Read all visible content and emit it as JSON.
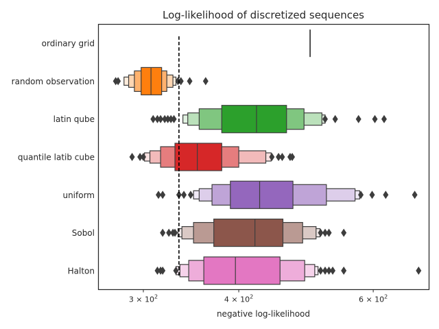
{
  "chart_data": {
    "type": "boxen",
    "title": "Log-likelihood of discretized sequences",
    "xlabel": "negative log-likelihood",
    "ylabel": "",
    "xscale": "log",
    "xlim": [
      262,
      710
    ],
    "xticks": [
      {
        "value": 300,
        "base": "3 × 10",
        "exp": "2"
      },
      {
        "value": 400,
        "base": "4 × 10",
        "exp": "2"
      },
      {
        "value": 600,
        "base": "6 × 10",
        "exp": "2"
      }
    ],
    "reference_line": {
      "x": 334,
      "style": "dashed"
    },
    "grid": false,
    "categories": [
      "ordinary grid",
      "random observation",
      "latin qube",
      "quantile latib cube",
      "uniform",
      "Sobol",
      "Halton"
    ],
    "series": [
      {
        "category": "ordinary grid",
        "color": "#1f77b4",
        "point_value": 496,
        "levels": [],
        "outliers": []
      },
      {
        "category": "random observation",
        "color": "#ff7f0e",
        "median": 307,
        "levels": [
          [
            298,
            317
          ],
          [
            292,
            322
          ],
          [
            287,
            328
          ],
          [
            283,
            331
          ]
        ],
        "outliers": [
          276,
          278,
          333,
          336,
          345,
          362
        ]
      },
      {
        "category": "latin qube",
        "color": "#2ca02c",
        "median": 422,
        "levels": [
          [
            380,
            462
          ],
          [
            355,
            487
          ],
          [
            343,
            514
          ],
          [
            338,
            519
          ]
        ],
        "outliers": [
          309,
          313,
          316,
          320,
          323,
          326,
          329,
          519,
          535,
          574,
          603,
          620
        ]
      },
      {
        "category": "quantile latib cube",
        "color": "#d62728",
        "median": 353,
        "levels": [
          [
            330,
            380
          ],
          [
            316,
            400
          ],
          [
            306,
            434
          ],
          [
            301,
            441
          ]
        ],
        "outliers": [
          290,
          297,
          300,
          442,
          451,
          456,
          467,
          470
        ]
      },
      {
        "category": "uniform",
        "color": "#9467bd",
        "median": 426,
        "levels": [
          [
            390,
            471
          ],
          [
            369,
            521
          ],
          [
            355,
            568
          ],
          [
            349,
            576
          ]
        ],
        "outliers": [
          314,
          318,
          334,
          339,
          346,
          578,
          598,
          623,
          680,
          753,
          862
        ]
      },
      {
        "category": "Sobol",
        "color": "#8c564b",
        "median": 420,
        "levels": [
          [
            371,
            457
          ],
          [
            349,
            485
          ],
          [
            337,
            505
          ],
          [
            333,
            511
          ]
        ],
        "outliers": [
          318,
          324,
          328,
          330,
          512,
          519,
          525,
          549
        ]
      },
      {
        "category": "Halton",
        "color": "#e377c2",
        "median": 396,
        "levels": [
          [
            360,
            453
          ],
          [
            344,
            488
          ],
          [
            335,
            503
          ],
          [
            331,
            508
          ]
        ],
        "outliers": [
          313,
          316,
          318,
          331,
          512,
          519,
          525,
          531,
          549,
          688
        ]
      }
    ]
  }
}
